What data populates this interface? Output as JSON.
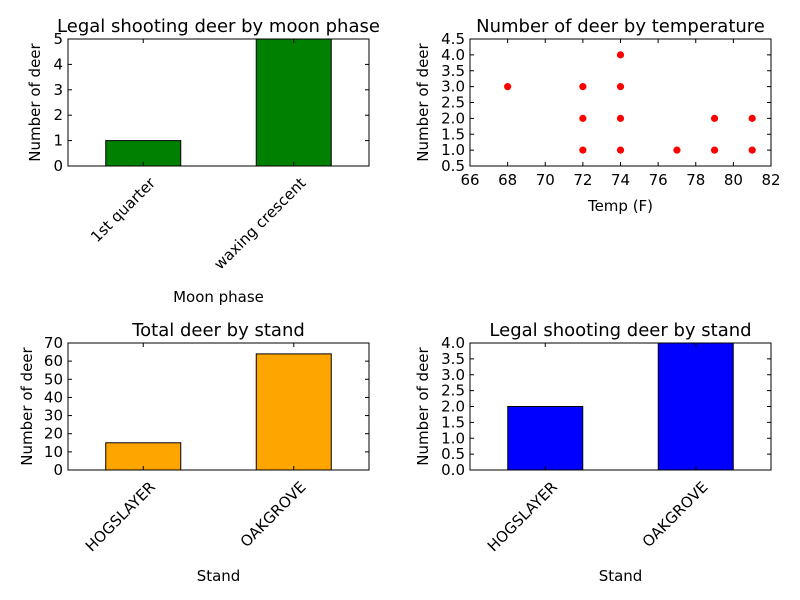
{
  "chart_data": [
    {
      "type": "bar",
      "title": "Legal shooting deer by moon phase",
      "xlabel": "Moon phase",
      "ylabel": "Number of deer",
      "categories": [
        "1st quarter",
        "waxing crescent"
      ],
      "values": [
        1,
        5
      ],
      "ylim": [
        0,
        5
      ],
      "yticks": [
        "0",
        "1",
        "2",
        "3",
        "4",
        "5"
      ],
      "color": "#008000",
      "grid": false
    },
    {
      "type": "scatter",
      "title": "Number of deer by temperature",
      "xlabel": "Temp (F)",
      "ylabel": "Number of deer",
      "xlim": [
        66,
        82
      ],
      "ylim": [
        0.5,
        4.5
      ],
      "xticks": [
        "66",
        "68",
        "70",
        "72",
        "74",
        "76",
        "78",
        "80",
        "82"
      ],
      "yticks": [
        "0.5",
        "1.0",
        "1.5",
        "2.0",
        "2.5",
        "3.0",
        "3.5",
        "4.0",
        "4.5"
      ],
      "points": [
        {
          "x": 68,
          "y": 3
        },
        {
          "x": 72,
          "y": 1
        },
        {
          "x": 72,
          "y": 2
        },
        {
          "x": 72,
          "y": 3
        },
        {
          "x": 74,
          "y": 1
        },
        {
          "x": 74,
          "y": 2
        },
        {
          "x": 74,
          "y": 3
        },
        {
          "x": 74,
          "y": 4
        },
        {
          "x": 77,
          "y": 1
        },
        {
          "x": 79,
          "y": 1
        },
        {
          "x": 79,
          "y": 2
        },
        {
          "x": 81,
          "y": 1
        },
        {
          "x": 81,
          "y": 2
        }
      ],
      "color": "#ff0000",
      "grid": false
    },
    {
      "type": "bar",
      "title": "Total deer by stand",
      "xlabel": "Stand",
      "ylabel": "Number of deer",
      "categories": [
        "HOGSLAYER",
        "OAKGROVE"
      ],
      "values": [
        15,
        64
      ],
      "ylim": [
        0,
        70
      ],
      "yticks": [
        "0",
        "10",
        "20",
        "30",
        "40",
        "50",
        "60",
        "70"
      ],
      "color": "#ffa500",
      "grid": false
    },
    {
      "type": "bar",
      "title": "Legal shooting deer by stand",
      "xlabel": "Stand",
      "ylabel": "Number of deer",
      "categories": [
        "HOGSLAYER",
        "OAKGROVE"
      ],
      "values": [
        2,
        4
      ],
      "ylim": [
        0,
        4
      ],
      "yticks": [
        "0.0",
        "0.5",
        "1.0",
        "1.5",
        "2.0",
        "2.5",
        "3.0",
        "3.5",
        "4.0"
      ],
      "color": "#0000ff",
      "grid": false
    }
  ]
}
